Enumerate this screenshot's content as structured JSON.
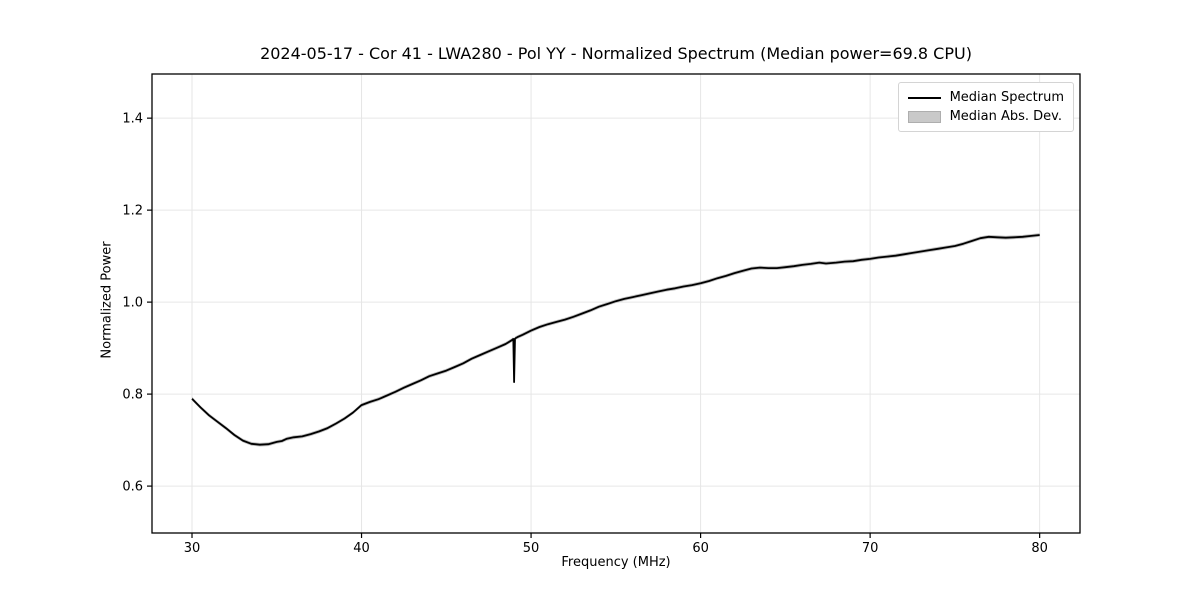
{
  "figure": {
    "title": "2024-05-17 - Cor 41 - LWA280 - Pol YY - Normalized Spectrum (Median power=69.8 CPU)"
  },
  "chart_data": {
    "type": "line",
    "title": "2024-05-17 - Cor 41 - LWA280 - Pol YY - Normalized Spectrum (Median power=69.8 CPU)",
    "xlabel": "Frequency (MHz)",
    "ylabel": "Normalized Power",
    "xlim": [
      27.64,
      82.38
    ],
    "ylim": [
      0.498,
      1.496
    ],
    "xticks": [
      30,
      40,
      50,
      60,
      70,
      80
    ],
    "xtick_labels": [
      "30",
      "40",
      "50",
      "60",
      "70",
      "80"
    ],
    "yticks": [
      0.6,
      0.8,
      1.0,
      1.2,
      1.4
    ],
    "ytick_labels": [
      "0.6",
      "0.8",
      "1.0",
      "1.2",
      "1.4"
    ],
    "grid": true,
    "legend_position": "upper right",
    "legend": [
      {
        "label": "Median Spectrum",
        "swatch": "line",
        "color": "#000000"
      },
      {
        "label": "Median Abs. Dev.",
        "swatch": "patch",
        "color": "#c9c9c9"
      }
    ],
    "mad_band_halfwidth": 0.004,
    "series": [
      {
        "name": "Median Spectrum",
        "color": "#000000",
        "points": [
          [
            30.0,
            0.79
          ],
          [
            30.5,
            0.771
          ],
          [
            31.0,
            0.754
          ],
          [
            31.5,
            0.74
          ],
          [
            32.0,
            0.726
          ],
          [
            32.5,
            0.711
          ],
          [
            33.0,
            0.699
          ],
          [
            33.5,
            0.692
          ],
          [
            34.0,
            0.69
          ],
          [
            34.5,
            0.691
          ],
          [
            35.0,
            0.696
          ],
          [
            35.3,
            0.698
          ],
          [
            35.6,
            0.703
          ],
          [
            36.0,
            0.706
          ],
          [
            36.5,
            0.708
          ],
          [
            37.0,
            0.713
          ],
          [
            37.5,
            0.719
          ],
          [
            38.0,
            0.726
          ],
          [
            38.5,
            0.736
          ],
          [
            39.0,
            0.747
          ],
          [
            39.5,
            0.76
          ],
          [
            40.0,
            0.776
          ],
          [
            40.5,
            0.783
          ],
          [
            41.0,
            0.789
          ],
          [
            41.5,
            0.797
          ],
          [
            42.0,
            0.805
          ],
          [
            42.5,
            0.814
          ],
          [
            43.0,
            0.822
          ],
          [
            43.5,
            0.83
          ],
          [
            44.0,
            0.839
          ],
          [
            44.5,
            0.845
          ],
          [
            45.0,
            0.851
          ],
          [
            45.5,
            0.859
          ],
          [
            46.0,
            0.867
          ],
          [
            46.5,
            0.877
          ],
          [
            47.0,
            0.885
          ],
          [
            47.5,
            0.893
          ],
          [
            48.0,
            0.901
          ],
          [
            48.5,
            0.909
          ],
          [
            48.85,
            0.917
          ],
          [
            48.95,
            0.92
          ],
          [
            49.0,
            0.826
          ],
          [
            49.05,
            0.921
          ],
          [
            49.2,
            0.924
          ],
          [
            49.5,
            0.929
          ],
          [
            50.0,
            0.938
          ],
          [
            50.5,
            0.946
          ],
          [
            51.0,
            0.952
          ],
          [
            51.5,
            0.957
          ],
          [
            52.0,
            0.962
          ],
          [
            52.5,
            0.968
          ],
          [
            53.0,
            0.975
          ],
          [
            53.5,
            0.982
          ],
          [
            54.0,
            0.99
          ],
          [
            54.5,
            0.996
          ],
          [
            55.0,
            1.002
          ],
          [
            55.5,
            1.007
          ],
          [
            56.0,
            1.011
          ],
          [
            56.5,
            1.015
          ],
          [
            57.0,
            1.019
          ],
          [
            57.5,
            1.023
          ],
          [
            58.0,
            1.027
          ],
          [
            58.5,
            1.03
          ],
          [
            59.0,
            1.034
          ],
          [
            59.5,
            1.037
          ],
          [
            60.0,
            1.041
          ],
          [
            60.5,
            1.046
          ],
          [
            61.0,
            1.052
          ],
          [
            61.5,
            1.057
          ],
          [
            62.0,
            1.063
          ],
          [
            62.5,
            1.068
          ],
          [
            63.0,
            1.073
          ],
          [
            63.5,
            1.075
          ],
          [
            64.0,
            1.074
          ],
          [
            64.5,
            1.074
          ],
          [
            65.0,
            1.076
          ],
          [
            65.5,
            1.078
          ],
          [
            66.0,
            1.081
          ],
          [
            66.5,
            1.083
          ],
          [
            67.0,
            1.086
          ],
          [
            67.4,
            1.084
          ],
          [
            68.0,
            1.086
          ],
          [
            68.5,
            1.088
          ],
          [
            69.0,
            1.089
          ],
          [
            69.5,
            1.092
          ],
          [
            70.0,
            1.094
          ],
          [
            70.5,
            1.097
          ],
          [
            71.0,
            1.099
          ],
          [
            71.5,
            1.101
          ],
          [
            72.0,
            1.104
          ],
          [
            72.5,
            1.107
          ],
          [
            73.0,
            1.11
          ],
          [
            73.5,
            1.113
          ],
          [
            74.0,
            1.116
          ],
          [
            74.5,
            1.119
          ],
          [
            75.0,
            1.122
          ],
          [
            75.5,
            1.127
          ],
          [
            76.0,
            1.133
          ],
          [
            76.5,
            1.139
          ],
          [
            77.0,
            1.142
          ],
          [
            77.5,
            1.141
          ],
          [
            78.0,
            1.14
          ],
          [
            78.5,
            1.141
          ],
          [
            79.0,
            1.142
          ],
          [
            79.5,
            1.144
          ],
          [
            80.0,
            1.146
          ]
        ]
      }
    ]
  },
  "colors": {
    "background": "#ffffff",
    "line": "#000000",
    "band": "#bfbfbf",
    "grid": "#e6e6e6",
    "spine": "#000000",
    "tick_text": "#000000",
    "legend_border": "#d4d4d4"
  }
}
